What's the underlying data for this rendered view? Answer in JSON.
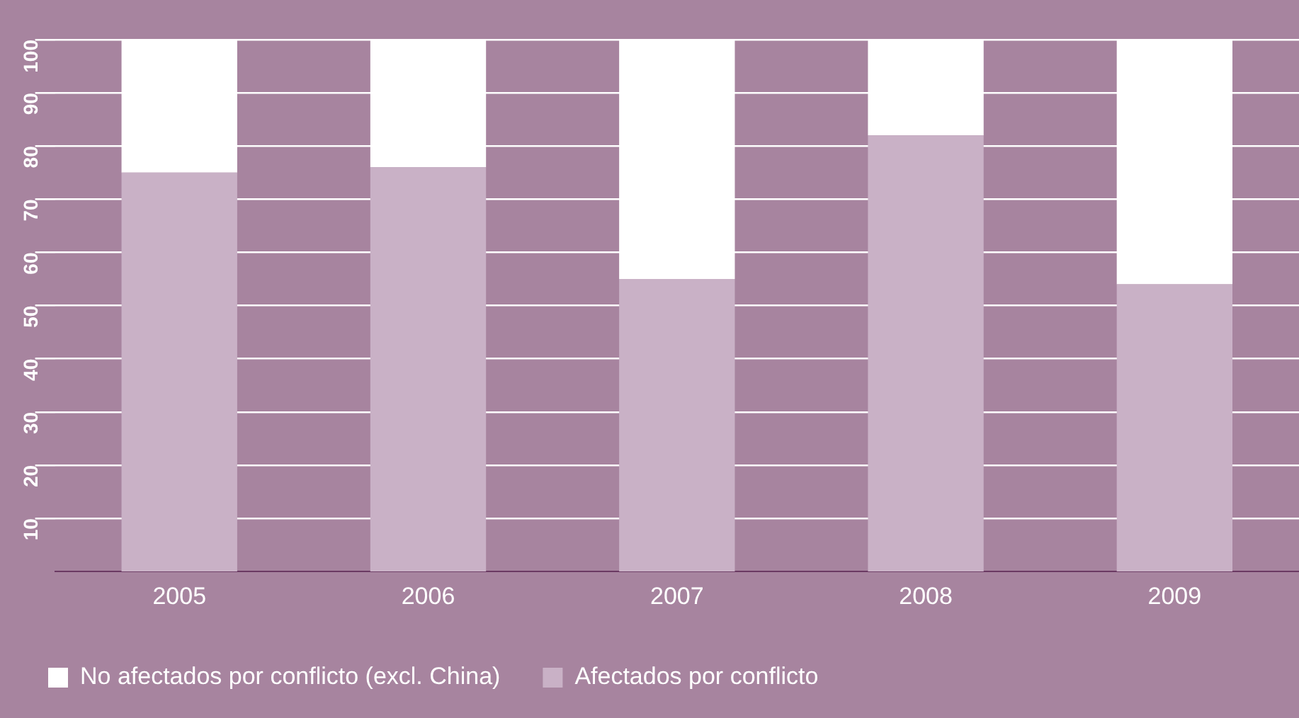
{
  "chart_data": {
    "type": "bar",
    "stacked": true,
    "categories": [
      "2005",
      "2006",
      "2007",
      "2008",
      "2009"
    ],
    "series": [
      {
        "name": "Afectados por conflicto",
        "color": "#c9b1c6",
        "values": [
          75,
          76,
          55,
          82,
          54
        ]
      },
      {
        "name": "No afectados por conflicto (excl. China)",
        "color": "#ffffff",
        "values": [
          25,
          24,
          45,
          18,
          46
        ]
      }
    ],
    "ylim": [
      0,
      100
    ],
    "yticks": [
      10,
      20,
      30,
      40,
      50,
      60,
      70,
      80,
      90,
      100
    ],
    "grid": "y",
    "legend": "bottom left"
  }
}
